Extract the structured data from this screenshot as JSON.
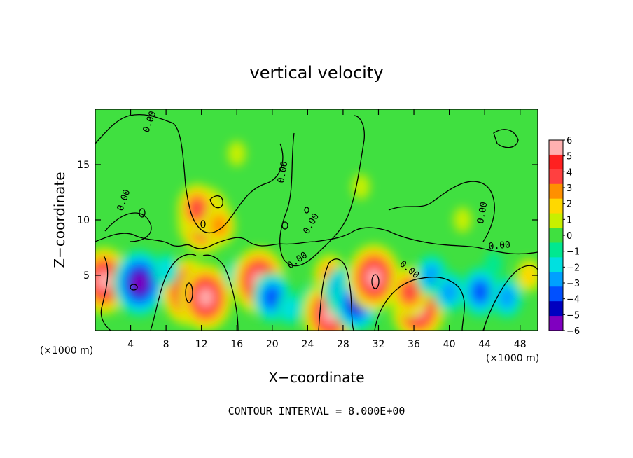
{
  "chart_data": {
    "type": "heatmap",
    "title": "vertical velocity",
    "xlabel": "X−coordinate",
    "ylabel": "Z−coordinate",
    "x_unit_left": "(×1000 m)",
    "x_unit_right": "(×1000 m)",
    "xlim": [
      0,
      50
    ],
    "ylim": [
      0,
      20
    ],
    "x_ticks": [
      4,
      8,
      12,
      16,
      20,
      24,
      28,
      32,
      36,
      40,
      44,
      48
    ],
    "y_ticks": [
      5,
      10,
      15
    ],
    "contour_level_label": "0.00",
    "contour_interval_text": "CONTOUR INTERVAL = 8.000E+00",
    "colorbar": {
      "ticks": [
        6,
        5,
        4,
        3,
        2,
        1,
        0,
        -1,
        -2,
        -3,
        -4,
        -5,
        -6
      ],
      "tick_labels": [
        "6",
        "5",
        "4",
        "3",
        "2",
        "1",
        "0",
        "−1",
        "−2",
        "−3",
        "−4",
        "−5",
        "−6"
      ],
      "colors": [
        "#ffb0b0",
        "#ff2020",
        "#ff4040",
        "#ff9000",
        "#ffd800",
        "#c8f000",
        "#40e040",
        "#00e890",
        "#00e0e0",
        "#00a0ff",
        "#0050ff",
        "#0000c0",
        "#8000c0"
      ]
    },
    "features": [
      {
        "x": 1.0,
        "z": 4.5,
        "w": 6
      },
      {
        "x": 5.0,
        "z": 4.3,
        "w": -6
      },
      {
        "x": 10.5,
        "z": 3.5,
        "w": 6
      },
      {
        "x": 12.5,
        "z": 3.0,
        "w": 6
      },
      {
        "x": 12.3,
        "z": 10.0,
        "w": 6
      },
      {
        "x": 11.5,
        "z": 11.0,
        "w": 4
      },
      {
        "x": 14.0,
        "z": 9.5,
        "w": 3
      },
      {
        "x": 8.0,
        "z": 5.5,
        "w": -2
      },
      {
        "x": 16.0,
        "z": 5.0,
        "w": -2
      },
      {
        "x": 18.5,
        "z": 4.5,
        "w": 6
      },
      {
        "x": 20.0,
        "z": 3.0,
        "w": -4
      },
      {
        "x": 22.0,
        "z": 2.0,
        "w": -2
      },
      {
        "x": 24.0,
        "z": 3.0,
        "w": -1
      },
      {
        "x": 26.5,
        "z": 1.5,
        "w": 6
      },
      {
        "x": 26.5,
        "z": 5.0,
        "w": 3
      },
      {
        "x": 28.0,
        "z": 3.5,
        "w": -4
      },
      {
        "x": 29.5,
        "z": 2.5,
        "w": -5
      },
      {
        "x": 31.5,
        "z": 4.8,
        "w": 6
      },
      {
        "x": 36.5,
        "z": 2.0,
        "w": 6
      },
      {
        "x": 35.5,
        "z": 3.5,
        "w": 4
      },
      {
        "x": 38.0,
        "z": 5.0,
        "w": -3
      },
      {
        "x": 40.0,
        "z": 3.5,
        "w": -3
      },
      {
        "x": 43.5,
        "z": 3.5,
        "w": -4
      },
      {
        "x": 46.5,
        "z": 3.0,
        "w": -3
      },
      {
        "x": 45.0,
        "z": 6.0,
        "w": -1
      },
      {
        "x": 49.0,
        "z": 5.0,
        "w": 2
      },
      {
        "x": 16.0,
        "z": 16.0,
        "w": 1
      },
      {
        "x": 30.0,
        "z": 13.0,
        "w": 1
      },
      {
        "x": 41.5,
        "z": 10.0,
        "w": 1
      }
    ]
  }
}
